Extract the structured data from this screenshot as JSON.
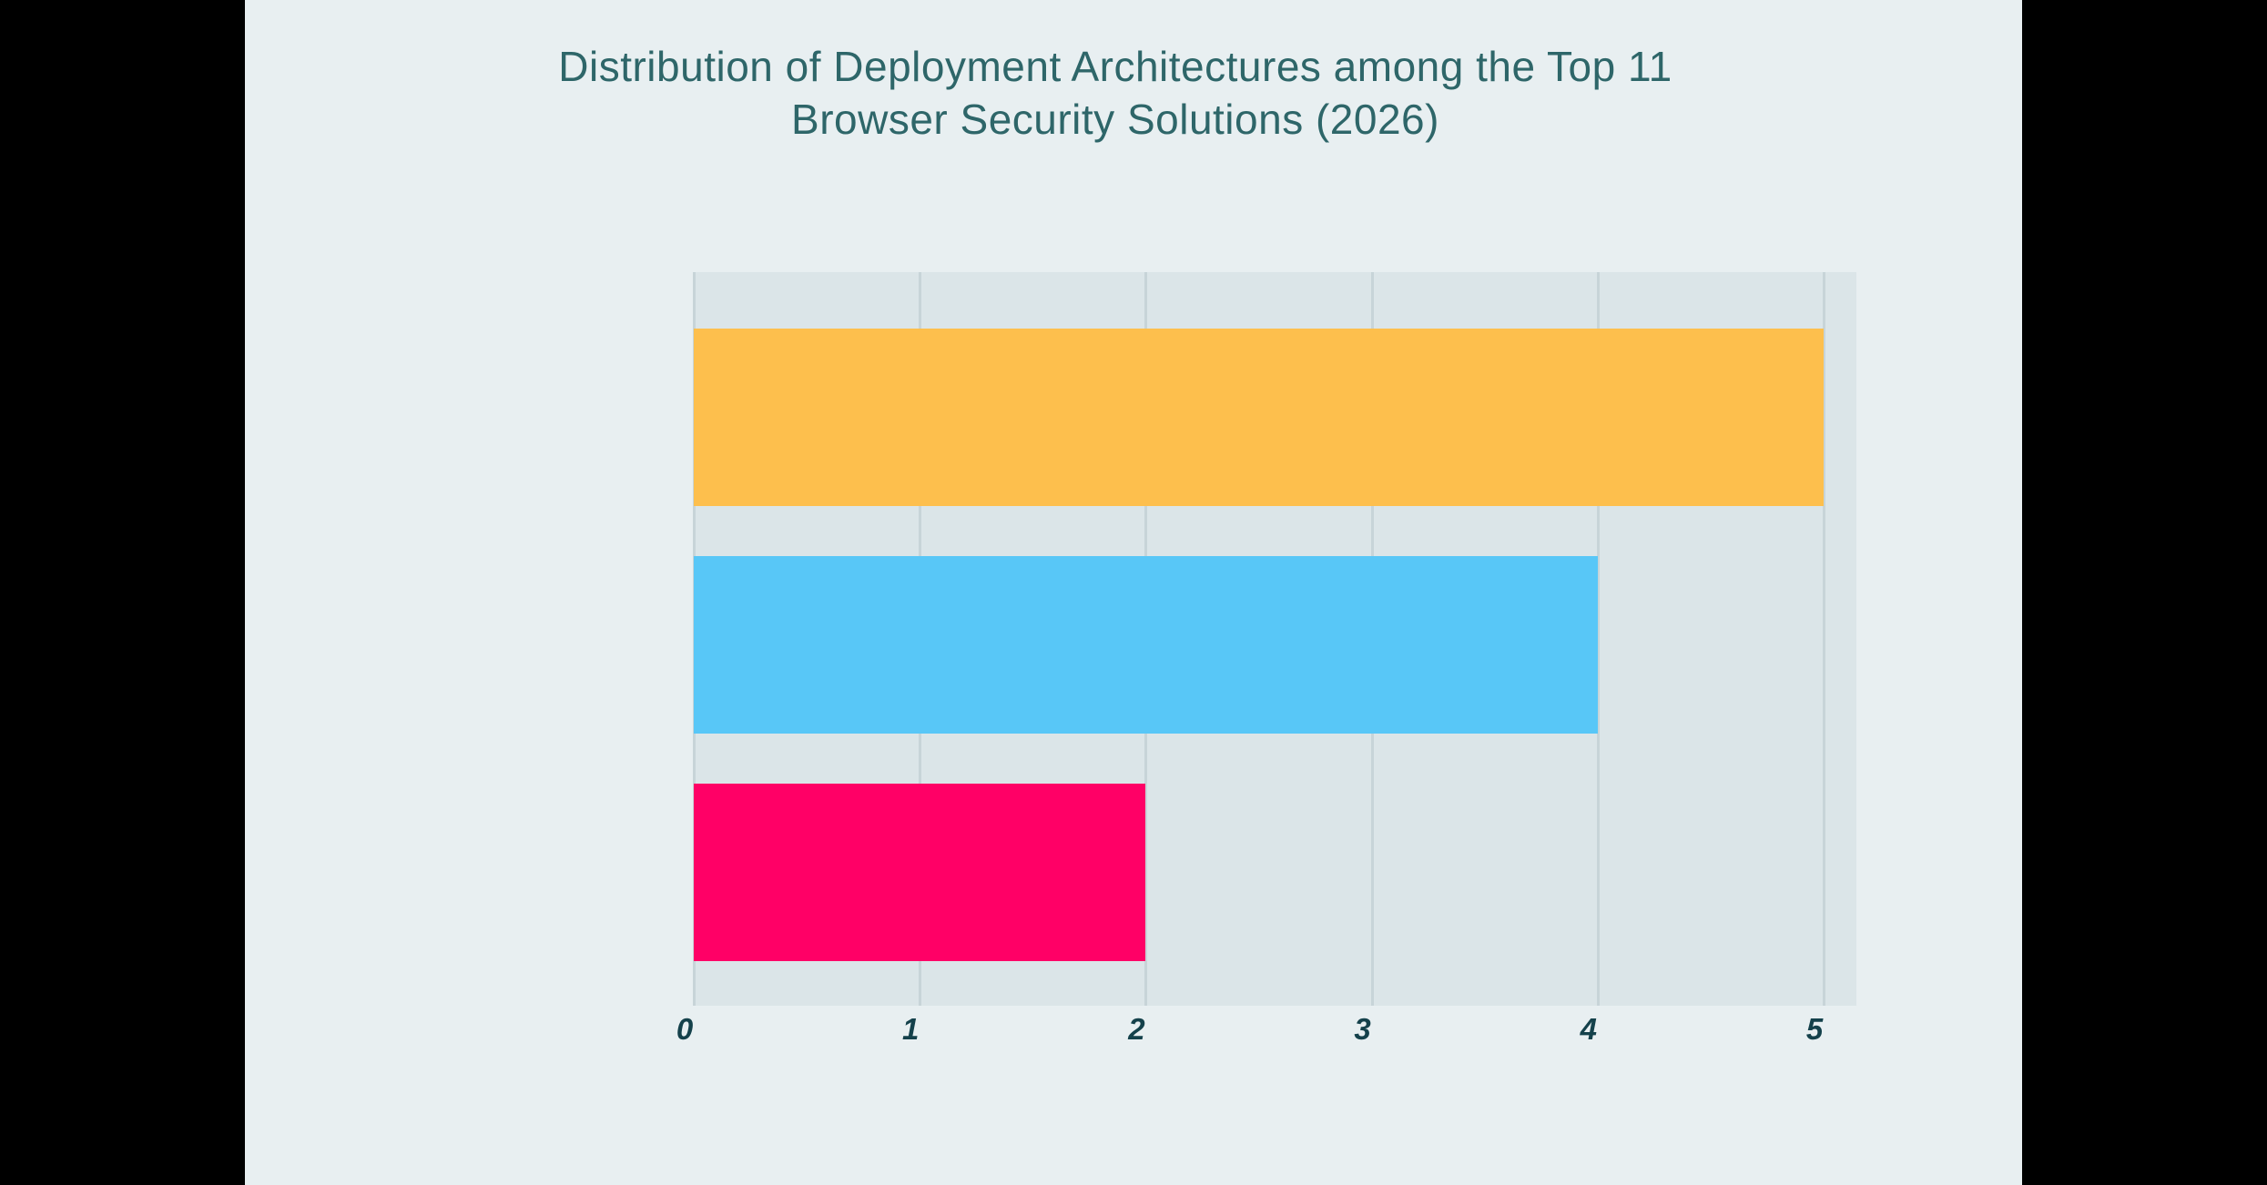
{
  "theme": {
    "letterbox": "#000000",
    "page_bg": "#e8eff1",
    "plot_bg": "#dbe5e8",
    "grid_color": "#c7d4d8",
    "title_color": "#2e6669",
    "tick_color": "#14414b"
  },
  "header": {
    "title_line1": "Distribution of Deployment Architectures among the Top 11",
    "title_line2": "Browser Security Solutions (2026)"
  },
  "chart_data": {
    "type": "bar",
    "orientation": "horizontal",
    "title": "Distribution of Deployment Architectures among the Top 11 Browser Security Solutions (2026)",
    "bars": [
      {
        "value": 5,
        "color": "#fdbf4d"
      },
      {
        "value": 4,
        "color": "#58c7f7"
      },
      {
        "value": 2,
        "color": "#ff0066"
      }
    ],
    "xticks": [
      0,
      1,
      2,
      3,
      4,
      5
    ],
    "xlim": [
      0,
      5.145
    ],
    "xlabel": "",
    "ylabel": "",
    "grid": true,
    "legend": "none"
  }
}
